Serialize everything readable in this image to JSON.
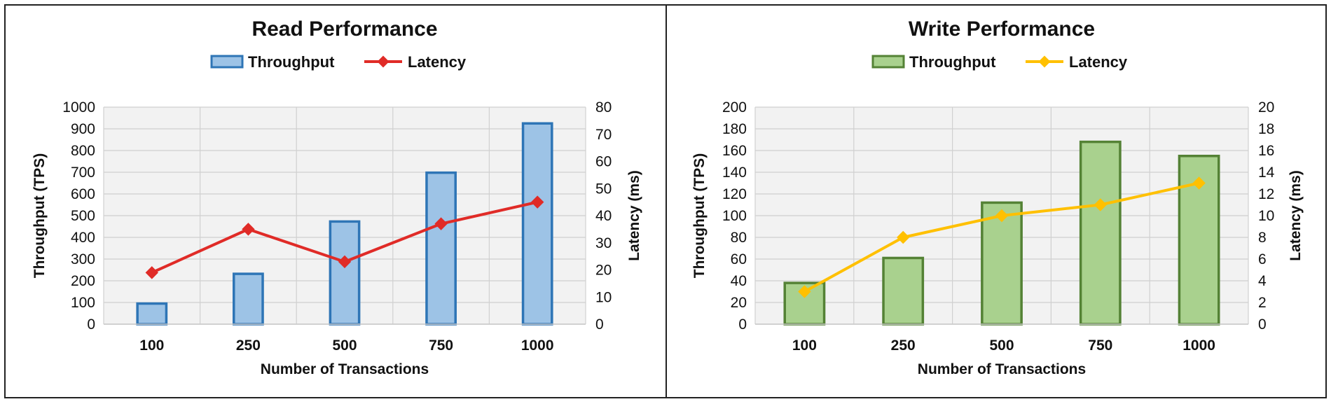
{
  "chart_data": [
    {
      "type": "bar",
      "title": "Read Performance",
      "xlabel": "Number of Transactions",
      "ylabel": "Throughput (TPS)",
      "y2label": "Latency (ms)",
      "categories": [
        "100",
        "250",
        "500",
        "750",
        "1000"
      ],
      "ylim": [
        0,
        1000
      ],
      "y2lim": [
        0,
        80
      ],
      "yticks": [
        "0",
        "100",
        "200",
        "300",
        "400",
        "500",
        "600",
        "700",
        "800",
        "900",
        "1000"
      ],
      "y2ticks": [
        "0",
        "10",
        "20",
        "30",
        "40",
        "50",
        "60",
        "70",
        "80"
      ],
      "grid": true,
      "legend_position": "top",
      "series": [
        {
          "name": "Throughput",
          "kind": "bar",
          "axis": "left",
          "values": [
            95,
            232,
            473,
            698,
            925
          ],
          "fill": "#9dc3e6",
          "stroke": "#2e75b6"
        },
        {
          "name": "Latency",
          "kind": "line",
          "axis": "right",
          "values": [
            19,
            35,
            23,
            37,
            45
          ],
          "color": "#e02b27"
        }
      ]
    },
    {
      "type": "bar",
      "title": "Write Performance",
      "xlabel": "Number of Transactions",
      "ylabel": "Throughput (TPS)",
      "y2label": "Latency (ms)",
      "categories": [
        "100",
        "250",
        "500",
        "750",
        "1000"
      ],
      "ylim": [
        0,
        200
      ],
      "y2lim": [
        0,
        20
      ],
      "yticks": [
        "0",
        "20",
        "40",
        "60",
        "80",
        "100",
        "120",
        "140",
        "160",
        "180",
        "200"
      ],
      "y2ticks": [
        "0",
        "2",
        "4",
        "6",
        "8",
        "10",
        "12",
        "14",
        "16",
        "18",
        "20"
      ],
      "grid": true,
      "legend_position": "top",
      "series": [
        {
          "name": "Throughput",
          "kind": "bar",
          "axis": "left",
          "values": [
            38,
            61,
            112,
            168,
            155
          ],
          "fill": "#a9d18e",
          "stroke": "#548235"
        },
        {
          "name": "Latency",
          "kind": "line",
          "axis": "right",
          "values": [
            3,
            8,
            10,
            11,
            13
          ],
          "color": "#ffc000"
        }
      ]
    }
  ]
}
